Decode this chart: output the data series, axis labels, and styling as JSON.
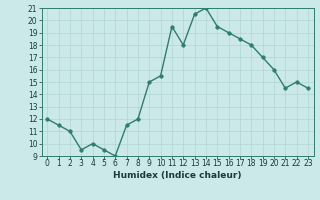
{
  "x": [
    0,
    1,
    2,
    3,
    4,
    5,
    6,
    7,
    8,
    9,
    10,
    11,
    12,
    13,
    14,
    15,
    16,
    17,
    18,
    19,
    20,
    21,
    22,
    23
  ],
  "y": [
    12,
    11.5,
    11,
    9.5,
    10,
    9.5,
    9,
    11.5,
    12,
    15,
    15.5,
    19.5,
    18,
    20.5,
    21,
    19.5,
    19,
    18.5,
    18,
    17,
    16,
    14.5,
    15,
    14.5
  ],
  "line_color": "#2e7d6e",
  "marker_color": "#2e7d6e",
  "bg_color": "#cce9e9",
  "grid_color": "#b0d4d4",
  "xlabel": "Humidex (Indice chaleur)",
  "ylim": [
    9,
    21
  ],
  "xlim": [
    -0.5,
    23.5
  ],
  "yticks": [
    9,
    10,
    11,
    12,
    13,
    14,
    15,
    16,
    17,
    18,
    19,
    20,
    21
  ],
  "xticks": [
    0,
    1,
    2,
    3,
    4,
    5,
    6,
    7,
    8,
    9,
    10,
    11,
    12,
    13,
    14,
    15,
    16,
    17,
    18,
    19,
    20,
    21,
    22,
    23
  ],
  "xtick_labels": [
    "0",
    "1",
    "2",
    "3",
    "4",
    "5",
    "6",
    "7",
    "8",
    "9",
    "10",
    "11",
    "12",
    "13",
    "14",
    "15",
    "16",
    "17",
    "18",
    "19",
    "20",
    "21",
    "22",
    "23"
  ],
  "marker_size": 2.5,
  "line_width": 1.0,
  "tick_fontsize": 5.5,
  "xlabel_fontsize": 6.5
}
